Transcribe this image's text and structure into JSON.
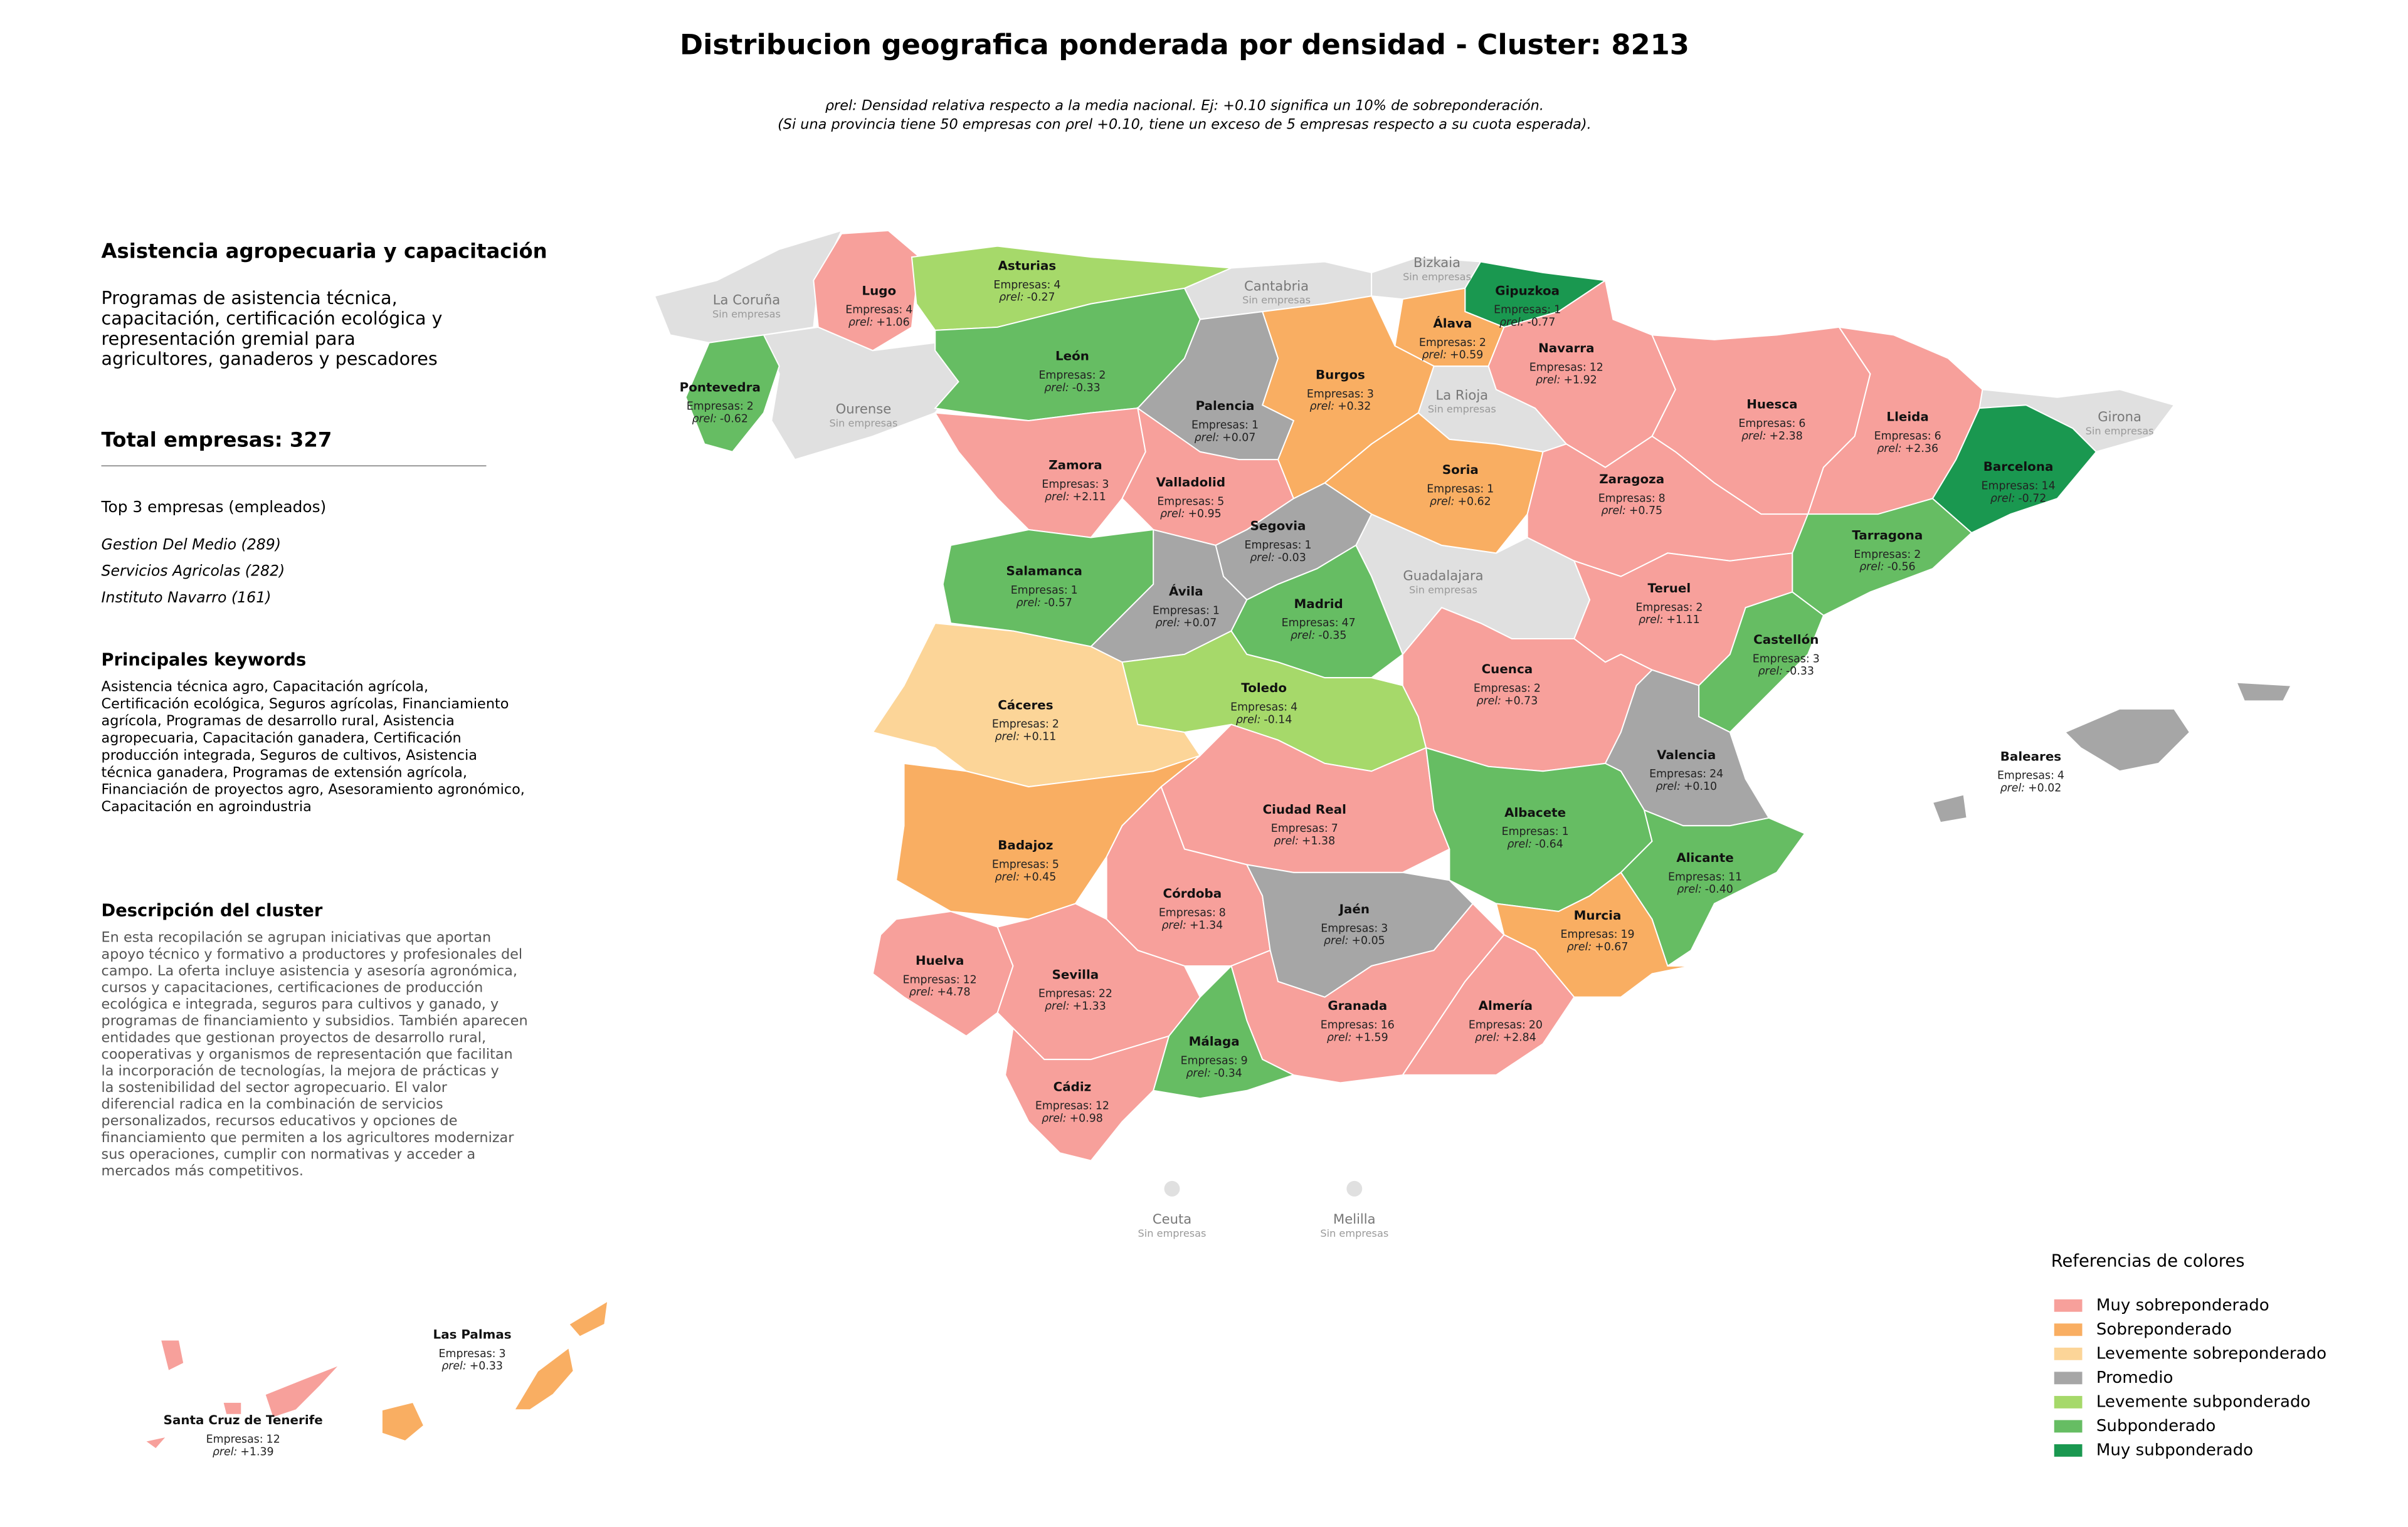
{
  "chart_data": {
    "type": "choropleth",
    "title": "Distribucion geografica ponderada por densidad - Cluster: 8213",
    "subtitle": [
      "ρrel: Densidad relativa respecto a la media nacional. Ej: +0.10 significa un 10% de sobreponderación.",
      "(Si una provincia tiene 50 empresas con ρrel +0.10, tiene un exceso de 5 empresas respecto a su cuota esperada)."
    ],
    "empresas_label": "Empresas:",
    "rho_label": "ρrel:",
    "no_data_label": "Sin empresas",
    "no_data_color": "#e0e0e0",
    "legend": {
      "title": "Referencias de colores",
      "position": "lower right",
      "items": [
        {
          "name": "Muy sobreponderado",
          "color": "#f7a09b"
        },
        {
          "name": "Sobreponderado",
          "color": "#f9ae62"
        },
        {
          "name": "Levemente sobreponderado",
          "color": "#fcd598"
        },
        {
          "name": "Promedio",
          "color": "#a6a6a6"
        },
        {
          "name": "Levemente subponderado",
          "color": "#a6d96a"
        },
        {
          "name": "Subponderado",
          "color": "#66bd63"
        },
        {
          "name": "Muy subponderado",
          "color": "#1a9850"
        }
      ]
    },
    "provinces": [
      {
        "name": "Lugo",
        "empresas": 4,
        "rho": 1.06,
        "rho_label": "+1.06",
        "level": 0
      },
      {
        "name": "Asturias",
        "empresas": 4,
        "rho": -0.27,
        "rho_label": "-0.27",
        "level": 4
      },
      {
        "name": "Gipuzkoa",
        "empresas": 1,
        "rho": -0.77,
        "rho_label": "-0.77",
        "level": 6
      },
      {
        "name": "Álava",
        "empresas": 2,
        "rho": 0.59,
        "rho_label": "+0.59",
        "level": 1
      },
      {
        "name": "Navarra",
        "empresas": 12,
        "rho": 1.92,
        "rho_label": "+1.92",
        "level": 0
      },
      {
        "name": "Pontevedra",
        "empresas": 2,
        "rho": -0.62,
        "rho_label": "-0.62",
        "level": 5
      },
      {
        "name": "León",
        "empresas": 2,
        "rho": -0.33,
        "rho_label": "-0.33",
        "level": 5
      },
      {
        "name": "Burgos",
        "empresas": 3,
        "rho": 0.32,
        "rho_label": "+0.32",
        "level": 1
      },
      {
        "name": "Palencia",
        "empresas": 1,
        "rho": 0.07,
        "rho_label": "+0.07",
        "level": 3
      },
      {
        "name": "Huesca",
        "empresas": 6,
        "rho": 2.38,
        "rho_label": "+2.38",
        "level": 0
      },
      {
        "name": "Lleida",
        "empresas": 6,
        "rho": 2.36,
        "rho_label": "+2.36",
        "level": 0
      },
      {
        "name": "Zamora",
        "empresas": 3,
        "rho": 2.11,
        "rho_label": "+2.11",
        "level": 0
      },
      {
        "name": "Soria",
        "empresas": 1,
        "rho": 0.62,
        "rho_label": "+0.62",
        "level": 1
      },
      {
        "name": "Barcelona",
        "empresas": 14,
        "rho": -0.72,
        "rho_label": "-0.72",
        "level": 6
      },
      {
        "name": "Zaragoza",
        "empresas": 8,
        "rho": 0.75,
        "rho_label": "+0.75",
        "level": 0
      },
      {
        "name": "Valladolid",
        "empresas": 5,
        "rho": 0.95,
        "rho_label": "+0.95",
        "level": 0
      },
      {
        "name": "Segovia",
        "empresas": 1,
        "rho": -0.03,
        "rho_label": "-0.03",
        "level": 3
      },
      {
        "name": "Tarragona",
        "empresas": 2,
        "rho": -0.56,
        "rho_label": "-0.56",
        "level": 5
      },
      {
        "name": "Salamanca",
        "empresas": 1,
        "rho": -0.57,
        "rho_label": "-0.57",
        "level": 5
      },
      {
        "name": "Ávila",
        "empresas": 1,
        "rho": 0.07,
        "rho_label": "+0.07",
        "level": 3
      },
      {
        "name": "Madrid",
        "empresas": 47,
        "rho": -0.35,
        "rho_label": "-0.35",
        "level": 5
      },
      {
        "name": "Teruel",
        "empresas": 2,
        "rho": 1.11,
        "rho_label": "+1.11",
        "level": 0
      },
      {
        "name": "Castellón",
        "empresas": 3,
        "rho": -0.33,
        "rho_label": "-0.33",
        "level": 5
      },
      {
        "name": "Toledo",
        "empresas": 4,
        "rho": -0.14,
        "rho_label": "-0.14",
        "level": 4
      },
      {
        "name": "Cuenca",
        "empresas": 2,
        "rho": 0.73,
        "rho_label": "+0.73",
        "level": 0
      },
      {
        "name": "Cáceres",
        "empresas": 2,
        "rho": 0.11,
        "rho_label": "+0.11",
        "level": 2
      },
      {
        "name": "Valencia",
        "empresas": 24,
        "rho": 0.1,
        "rho_label": "+0.10",
        "level": 3
      },
      {
        "name": "Baleares",
        "empresas": 4,
        "rho": 0.02,
        "rho_label": "+0.02",
        "level": 3
      },
      {
        "name": "Ciudad Real",
        "empresas": 7,
        "rho": 1.38,
        "rho_label": "+1.38",
        "level": 0
      },
      {
        "name": "Albacete",
        "empresas": 1,
        "rho": -0.64,
        "rho_label": "-0.64",
        "level": 5
      },
      {
        "name": "Badajoz",
        "empresas": 5,
        "rho": 0.45,
        "rho_label": "+0.45",
        "level": 1
      },
      {
        "name": "Alicante",
        "empresas": 11,
        "rho": -0.4,
        "rho_label": "-0.40",
        "level": 5
      },
      {
        "name": "Córdoba",
        "empresas": 8,
        "rho": 1.34,
        "rho_label": "+1.34",
        "level": 0
      },
      {
        "name": "Jaén",
        "empresas": 3,
        "rho": 0.05,
        "rho_label": "+0.05",
        "level": 3
      },
      {
        "name": "Murcia",
        "empresas": 19,
        "rho": 0.67,
        "rho_label": "+0.67",
        "level": 1
      },
      {
        "name": "Huelva",
        "empresas": 12,
        "rho": 4.78,
        "rho_label": "+4.78",
        "level": 0
      },
      {
        "name": "Sevilla",
        "empresas": 22,
        "rho": 1.33,
        "rho_label": "+1.33",
        "level": 0
      },
      {
        "name": "Granada",
        "empresas": 16,
        "rho": 1.59,
        "rho_label": "+1.59",
        "level": 0
      },
      {
        "name": "Almería",
        "empresas": 20,
        "rho": 2.84,
        "rho_label": "+2.84",
        "level": 0
      },
      {
        "name": "Málaga",
        "empresas": 9,
        "rho": -0.34,
        "rho_label": "-0.34",
        "level": 5
      },
      {
        "name": "Cádiz",
        "empresas": 12,
        "rho": 0.98,
        "rho_label": "+0.98",
        "level": 0
      },
      {
        "name": "Las Palmas",
        "empresas": 3,
        "rho": 0.33,
        "rho_label": "+0.33",
        "level": 1
      },
      {
        "name": "Santa Cruz de Tenerife",
        "empresas": 12,
        "rho": 1.39,
        "rho_label": "+1.39",
        "level": 0
      }
    ],
    "no_data_provinces": [
      "La Coruña",
      "Cantabria",
      "Bizkaia",
      "La Rioja",
      "Ourense",
      "Girona",
      "Guadalajara",
      "Ceuta",
      "Melilla"
    ]
  },
  "panel": {
    "heading": "Asistencia agropecuaria y capacitación",
    "intro": [
      "Programas de asistencia técnica,",
      "capacitación, certificación ecológica y",
      "representación gremial para",
      "agricultores, ganaderos y pescadores"
    ],
    "total": "Total empresas: 327",
    "top_title": "Top 3 empresas (empleados)",
    "top": [
      "Gestion Del Medio (289)",
      "Servicios Agricolas (282)",
      "Instituto Navarro (161)"
    ],
    "keywords_title": "Principales keywords",
    "keywords": [
      "Asistencia técnica agro, Capacitación agrícola,",
      "Certificación ecológica, Seguros agrícolas, Financiamiento",
      "agrícola, Programas de desarrollo rural, Asistencia",
      "agropecuaria, Capacitación ganadera, Certificación",
      "producción integrada, Seguros de cultivos, Asistencia",
      "técnica ganadera, Programas de extensión agrícola,",
      "Financiación de proyectos agro, Asesoramiento agronómico,",
      "Capacitación en agroindustria"
    ],
    "description_title": "Descripción del cluster",
    "description": [
      "En esta recopilación se agrupan iniciativas que aportan",
      "apoyo técnico y formativo a productores y profesionales del",
      "campo. La oferta incluye asistencia y asesoría agronómica,",
      "cursos y capacitaciones, certificaciones de producción",
      "ecológica e integrada, seguros para cultivos y ganado, y",
      "programas de financiamiento y subsidios. También aparecen",
      "entidades que gestionan proyectos de desarrollo rural,",
      "cooperativas y organismos de representación que facilitan",
      "la incorporación de tecnologías, la mejora de prácticas y",
      "la sostenibilidad del sector agropecuario. El valor",
      "diferencial radica en la combinación de servicios",
      "personalizados, recursos educativos y opciones de",
      "financiamiento que permiten a los agricultores modernizar",
      "sus operaciones, cumplir con normativas y acceder a",
      "mercados más competitivos."
    ]
  }
}
